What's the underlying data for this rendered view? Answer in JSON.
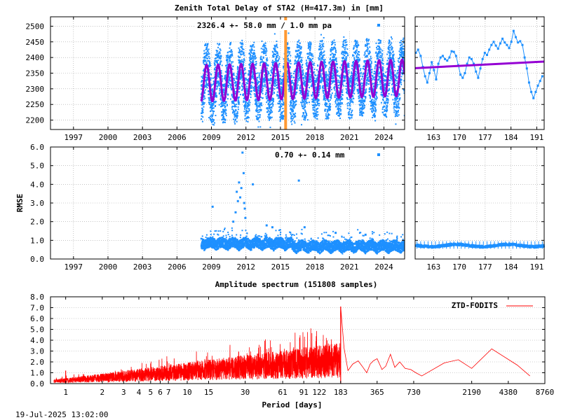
{
  "title": "Zenith Total Delay of STA2 (H=417.3m) in [mm]",
  "timestamp": "19-Jul-2025 13:02:00",
  "colors": {
    "data": "#1e90ff",
    "model": "#9400d3",
    "spectrum": "#ff0000",
    "marker": "#ff9933",
    "grid": "#a0a0a0"
  },
  "chart_data": [
    {
      "id": "ztd-series",
      "type": "scatter",
      "title": "Zenith Total Delay of STA2 (H=417.3m) in [mm]",
      "annotation": "2326.4 +-  58.0 mm /  1.0 mm pa",
      "xlim": [
        1995.0,
        2025.8
      ],
      "ylim": [
        2170,
        2530
      ],
      "x_ticks": [
        "1997",
        "2000",
        "2003",
        "2006",
        "2009",
        "2012",
        "2015",
        "2018",
        "2021",
        "2024"
      ],
      "y_ticks": [
        "2200",
        "2250",
        "2300",
        "2350",
        "2400",
        "2450",
        "2500"
      ],
      "data_start": 2008.1,
      "mean": 2326.4,
      "amplitude": 58.0,
      "rate_per_year": 1.0,
      "seasonal_period_years": 1.0,
      "marker_epoch": 2015.45
    },
    {
      "id": "ztd-recent",
      "type": "scatter",
      "xlim": [
        158,
        193
      ],
      "ylim": [
        2170,
        2530
      ],
      "x_ticks": [
        "163",
        "170",
        "177",
        "184",
        "191"
      ],
      "points": [
        [
          158.2,
          2415
        ],
        [
          158.8,
          2425
        ],
        [
          159.5,
          2405
        ],
        [
          160.1,
          2370
        ],
        [
          160.7,
          2340
        ],
        [
          161.3,
          2320
        ],
        [
          161.9,
          2350
        ],
        [
          162.5,
          2385
        ],
        [
          163.1,
          2360
        ],
        [
          163.7,
          2330
        ],
        [
          164.3,
          2380
        ],
        [
          164.9,
          2400
        ],
        [
          165.5,
          2405
        ],
        [
          166.1,
          2395
        ],
        [
          166.7,
          2390
        ],
        [
          167.3,
          2400
        ],
        [
          167.9,
          2420
        ],
        [
          168.5,
          2418
        ],
        [
          169.1,
          2405
        ],
        [
          169.7,
          2375
        ],
        [
          170.3,
          2345
        ],
        [
          170.9,
          2335
        ],
        [
          171.5,
          2350
        ],
        [
          172.1,
          2380
        ],
        [
          172.7,
          2400
        ],
        [
          173.3,
          2395
        ],
        [
          173.9,
          2380
        ],
        [
          174.5,
          2355
        ],
        [
          175.1,
          2335
        ],
        [
          175.7,
          2365
        ],
        [
          176.3,
          2395
        ],
        [
          176.9,
          2415
        ],
        [
          177.5,
          2408
        ],
        [
          178.1,
          2425
        ],
        [
          178.7,
          2440
        ],
        [
          179.3,
          2450
        ],
        [
          179.9,
          2438
        ],
        [
          180.5,
          2428
        ],
        [
          181.1,
          2445
        ],
        [
          181.7,
          2460
        ],
        [
          182.3,
          2448
        ],
        [
          182.9,
          2440
        ],
        [
          183.5,
          2430
        ],
        [
          184.1,
          2450
        ],
        [
          184.7,
          2485
        ],
        [
          185.3,
          2465
        ],
        [
          185.9,
          2448
        ],
        [
          186.5,
          2452
        ],
        [
          187.1,
          2440
        ],
        [
          187.7,
          2400
        ],
        [
          188.3,
          2365
        ],
        [
          188.9,
          2320
        ],
        [
          189.5,
          2290
        ],
        [
          190.1,
          2270
        ],
        [
          190.7,
          2290
        ],
        [
          191.3,
          2310
        ],
        [
          191.9,
          2325
        ],
        [
          192.5,
          2340
        ]
      ],
      "trend": [
        [
          158,
          2366
        ],
        [
          193,
          2387
        ]
      ]
    },
    {
      "id": "rmse-series",
      "type": "scatter",
      "ylabel": "RMSE",
      "annotation": "0.70 +-  0.14 mm",
      "xlim": [
        1995.0,
        2025.8
      ],
      "ylim": [
        0,
        6
      ],
      "x_ticks": [
        "1997",
        "2000",
        "2003",
        "2006",
        "2009",
        "2012",
        "2015",
        "2018",
        "2021",
        "2024"
      ],
      "y_ticks": [
        "0.0",
        "1.0",
        "2.0",
        "3.0",
        "4.0",
        "5.0",
        "6.0"
      ],
      "data_start": 2008.1,
      "mean": 0.7,
      "std": 0.14,
      "outliers": [
        [
          2009.1,
          2.8
        ],
        [
          2010.9,
          2.0
        ],
        [
          2011.1,
          2.5
        ],
        [
          2011.2,
          3.6
        ],
        [
          2011.3,
          3.1
        ],
        [
          2011.4,
          4.1
        ],
        [
          2011.5,
          3.3
        ],
        [
          2011.6,
          3.8
        ],
        [
          2011.7,
          5.7
        ],
        [
          2011.8,
          4.6
        ],
        [
          2011.85,
          3.0
        ],
        [
          2011.9,
          2.7
        ],
        [
          2011.95,
          2.2
        ],
        [
          2012.6,
          4.0
        ],
        [
          2013.8,
          1.8
        ],
        [
          2014.3,
          1.7
        ],
        [
          2016.6,
          4.2
        ],
        [
          2017.1,
          1.7
        ],
        [
          2019.8,
          1.4
        ],
        [
          2022.4,
          1.3
        ]
      ]
    },
    {
      "id": "rmse-recent",
      "type": "scatter",
      "xlim": [
        158,
        193
      ],
      "ylim": [
        0,
        6
      ],
      "x_ticks": [
        "163",
        "170",
        "177",
        "184",
        "191"
      ]
    },
    {
      "id": "spectrum",
      "type": "line",
      "title": "Amplitude spectrum (151808 samples)",
      "xlabel": "Period [days]",
      "legend": "ZTD-FODITS",
      "legend_position": "top-right",
      "x_scale": "log",
      "xlim": [
        0.75,
        8760
      ],
      "ylim": [
        0,
        8
      ],
      "x_ticks": [
        "1",
        "2",
        "3",
        "4",
        "5",
        "6",
        "7",
        "10",
        "15",
        "30",
        "61",
        "91",
        "122",
        "183",
        "365",
        "730",
        "2190",
        "4380",
        "8760"
      ],
      "y_ticks": [
        "0.0",
        "1.0",
        "2.0",
        "3.0",
        "4.0",
        "5.0",
        "6.0",
        "7.0",
        "8.0"
      ],
      "peaks": [
        [
          1,
          1.2
        ],
        [
          183,
          7.1
        ]
      ],
      "long_period": [
        [
          183,
          7.1
        ],
        [
          195,
          3.3
        ],
        [
          210,
          1.2
        ],
        [
          230,
          1.8
        ],
        [
          255,
          2.1
        ],
        [
          275,
          1.6
        ],
        [
          300,
          1.0
        ],
        [
          320,
          1.8
        ],
        [
          340,
          2.1
        ],
        [
          365,
          2.3
        ],
        [
          400,
          1.3
        ],
        [
          430,
          1.6
        ],
        [
          470,
          2.7
        ],
        [
          510,
          1.5
        ],
        [
          560,
          2.0
        ],
        [
          620,
          1.4
        ],
        [
          690,
          1.3
        ],
        [
          760,
          1.0
        ],
        [
          850,
          0.7
        ],
        [
          1300,
          1.9
        ],
        [
          1700,
          2.2
        ],
        [
          2190,
          1.4
        ],
        [
          3200,
          3.2
        ],
        [
          5200,
          1.7
        ],
        [
          6600,
          0.7
        ]
      ]
    }
  ]
}
